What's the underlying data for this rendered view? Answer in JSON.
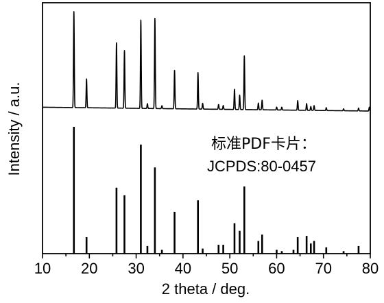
{
  "chart_data": {
    "type": "line",
    "xlabel": "2 theta / deg.",
    "ylabel": "Intensity / a.u.",
    "xlim": [
      10,
      80
    ],
    "x_ticks": [
      "10",
      "20",
      "30",
      "40",
      "50",
      "60",
      "70",
      "80"
    ],
    "x_minor_step": 5,
    "y_ticks_shown": false,
    "grid": false,
    "annotation": {
      "line1": "标准PDF卡片：",
      "line2": "JCPDS:80-0457",
      "placement": "right-middle"
    },
    "colors": {
      "line": "#000000",
      "background": "#ffffff"
    },
    "series": [
      {
        "style": "continuous-pattern",
        "baseline": 0.04,
        "baseline_end": 0.0,
        "peaks": [
          {
            "x": 16.7,
            "y": 1.0
          },
          {
            "x": 19.4,
            "y": 0.3
          },
          {
            "x": 25.8,
            "y": 0.68
          },
          {
            "x": 27.5,
            "y": 0.6
          },
          {
            "x": 31.0,
            "y": 0.92
          },
          {
            "x": 32.4,
            "y": 0.05
          },
          {
            "x": 34.0,
            "y": 0.94
          },
          {
            "x": 35.5,
            "y": 0.03
          },
          {
            "x": 38.2,
            "y": 0.4
          },
          {
            "x": 43.2,
            "y": 0.38
          },
          {
            "x": 44.2,
            "y": 0.06
          },
          {
            "x": 47.6,
            "y": 0.05
          },
          {
            "x": 48.6,
            "y": 0.04
          },
          {
            "x": 51.0,
            "y": 0.21
          },
          {
            "x": 52.1,
            "y": 0.15
          },
          {
            "x": 53.1,
            "y": 0.56
          },
          {
            "x": 56.1,
            "y": 0.07
          },
          {
            "x": 56.9,
            "y": 0.1
          },
          {
            "x": 60.0,
            "y": 0.03
          },
          {
            "x": 61.1,
            "y": 0.03
          },
          {
            "x": 64.5,
            "y": 0.1
          },
          {
            "x": 66.4,
            "y": 0.07
          },
          {
            "x": 67.3,
            "y": 0.04
          },
          {
            "x": 68.0,
            "y": 0.05
          },
          {
            "x": 70.6,
            "y": 0.03
          },
          {
            "x": 74.3,
            "y": 0.02
          },
          {
            "x": 77.5,
            "y": 0.03
          },
          {
            "x": 79.8,
            "y": 0.04
          }
        ]
      },
      {
        "style": "reference-sticks",
        "peaks": [
          {
            "x": 16.7,
            "y": 1.0
          },
          {
            "x": 19.4,
            "y": 0.13
          },
          {
            "x": 25.8,
            "y": 0.52
          },
          {
            "x": 27.5,
            "y": 0.46
          },
          {
            "x": 31.0,
            "y": 0.86
          },
          {
            "x": 32.4,
            "y": 0.06
          },
          {
            "x": 34.0,
            "y": 0.68
          },
          {
            "x": 35.5,
            "y": 0.03
          },
          {
            "x": 38.2,
            "y": 0.33
          },
          {
            "x": 43.2,
            "y": 0.42
          },
          {
            "x": 44.2,
            "y": 0.04
          },
          {
            "x": 47.6,
            "y": 0.07
          },
          {
            "x": 48.6,
            "y": 0.07
          },
          {
            "x": 51.0,
            "y": 0.24
          },
          {
            "x": 52.1,
            "y": 0.18
          },
          {
            "x": 53.1,
            "y": 0.53
          },
          {
            "x": 56.1,
            "y": 0.1
          },
          {
            "x": 56.9,
            "y": 0.15
          },
          {
            "x": 60.0,
            "y": 0.03
          },
          {
            "x": 61.1,
            "y": 0.02
          },
          {
            "x": 63.6,
            "y": 0.03
          },
          {
            "x": 64.5,
            "y": 0.13
          },
          {
            "x": 66.4,
            "y": 0.14
          },
          {
            "x": 67.3,
            "y": 0.08
          },
          {
            "x": 68.0,
            "y": 0.1
          },
          {
            "x": 70.6,
            "y": 0.05
          },
          {
            "x": 74.3,
            "y": 0.02
          },
          {
            "x": 77.5,
            "y": 0.06
          }
        ]
      }
    ]
  }
}
